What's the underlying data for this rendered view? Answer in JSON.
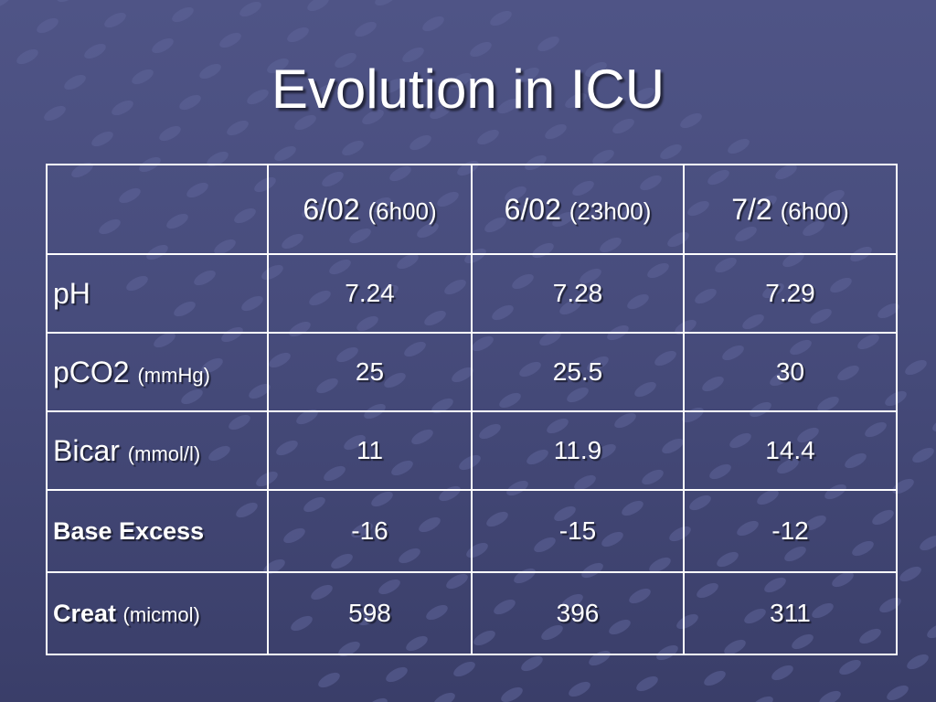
{
  "slide": {
    "title": "Evolution in ICU"
  },
  "table": {
    "columns": [
      {
        "date": "6/02",
        "time": "(6h00)"
      },
      {
        "date": "6/02",
        "time": "(23h00)"
      },
      {
        "date": "7/2",
        "time": "(6h00)"
      }
    ],
    "rows": [
      {
        "label": "pH",
        "unit": "",
        "values": [
          "7.24",
          "7.28",
          "7.29"
        ]
      },
      {
        "label": "pCO2",
        "unit": "(mmHg)",
        "values": [
          "25",
          "25.5",
          "30"
        ]
      },
      {
        "label": "Bicar",
        "unit": "(mmol/l)",
        "values": [
          "11",
          "11.9",
          "14.4"
        ]
      },
      {
        "label": "Base Excess",
        "unit": "",
        "values": [
          "-16",
          "-15",
          "-12"
        ]
      },
      {
        "label": "Creat",
        "unit": "(micmol)",
        "values": [
          "598",
          "396",
          "311"
        ]
      }
    ]
  },
  "colors": {
    "background_top": "#4f5486",
    "background_bottom": "#3a3e69",
    "text": "#ffffff",
    "grid_lines": "#ffffff"
  }
}
